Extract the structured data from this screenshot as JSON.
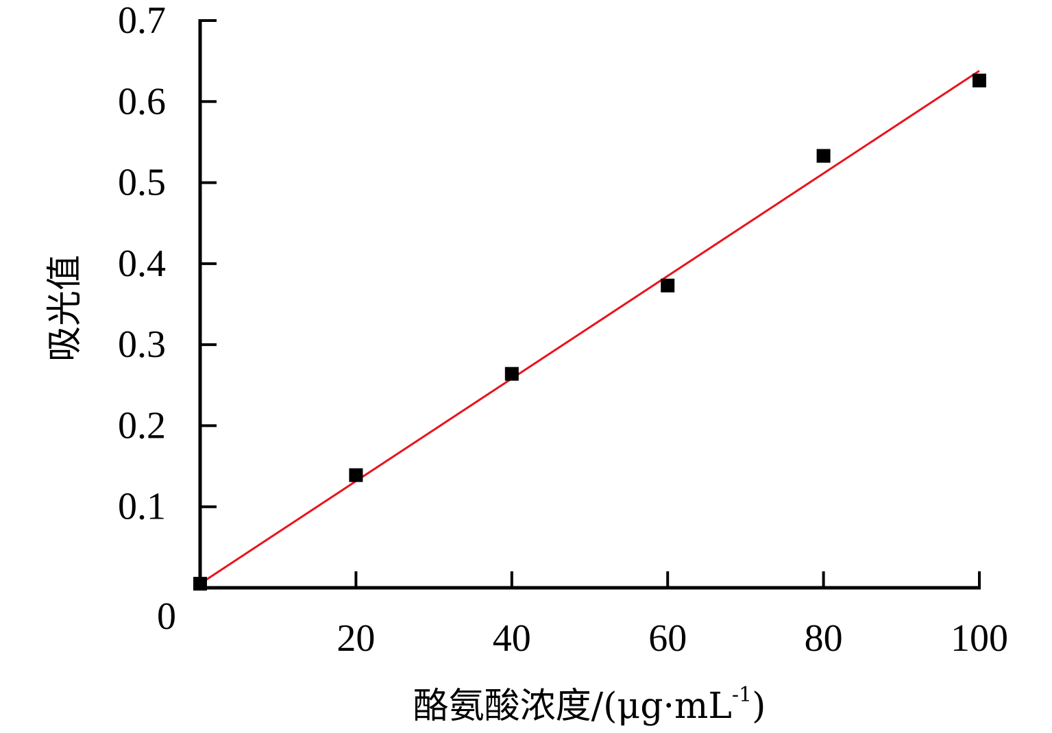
{
  "chart_data": {
    "type": "scatter",
    "title": "",
    "xlabel": "酪氨酸浓度/(μg·mL",
    "xlabel_sup": "-1",
    "xlabel_close": ")",
    "ylabel": "吸光值",
    "xlim": [
      0,
      100
    ],
    "ylim": [
      0,
      0.7
    ],
    "x_ticks": [
      0,
      20,
      40,
      60,
      80,
      100
    ],
    "x_tick_labels": [
      "20",
      "40",
      "60",
      "80",
      "100"
    ],
    "y_ticks": [
      0.1,
      0.2,
      0.3,
      0.4,
      0.5,
      0.6,
      0.7
    ],
    "y_tick_labels": [
      "0.1",
      "0.2",
      "0.3",
      "0.4",
      "0.5",
      "0.6",
      "0.7"
    ],
    "origin_label": "0",
    "grid": false,
    "series": [
      {
        "marker": "square",
        "color": "#000000",
        "x": [
          0,
          20,
          40,
          60,
          80,
          100
        ],
        "y": [
          0.005,
          0.139,
          0.264,
          0.373,
          0.533,
          0.626
        ]
      }
    ],
    "fit_line": {
      "color": "#e8141c",
      "x": [
        0,
        100
      ],
      "y": [
        0.005,
        0.638
      ]
    }
  }
}
